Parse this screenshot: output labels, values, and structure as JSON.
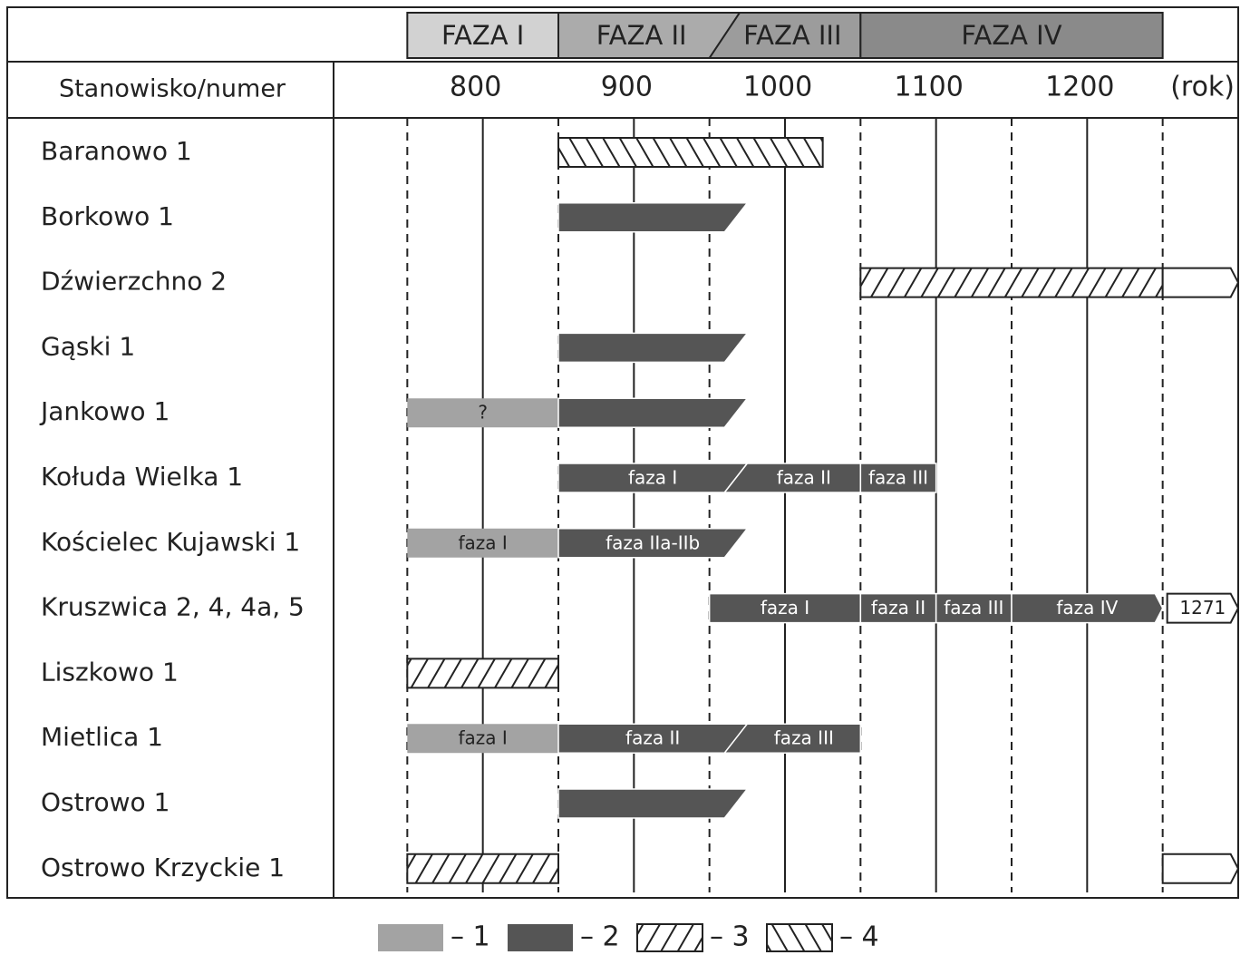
{
  "chart_data": {
    "type": "timeline",
    "row_header": "Stanowisko/numer",
    "axis_unit": "(rok)",
    "xlim": [
      700,
      1300
    ],
    "xticks": [
      800,
      900,
      1000,
      1100,
      1200
    ],
    "dashed_lines": [
      750,
      850,
      950,
      1050,
      1150,
      1250
    ],
    "phases": [
      {
        "label": "FAZA I",
        "start": 750,
        "end": 850,
        "color": "#d2d2d2"
      },
      {
        "label": "FAZA II",
        "start": 850,
        "end": 960,
        "color": "#ababab"
      },
      {
        "label": "FAZA III",
        "start": 960,
        "end": 1050,
        "color": "#9c9c9c"
      },
      {
        "label": "FAZA IV",
        "start": 1050,
        "end": 1250,
        "color": "#8a8a8a"
      }
    ],
    "legend": [
      {
        "label": "– 1",
        "style": "light"
      },
      {
        "label": "– 2",
        "style": "dark"
      },
      {
        "label": "– 3",
        "style": "hatch-right"
      },
      {
        "label": "– 4",
        "style": "hatch-left"
      }
    ],
    "rows": [
      {
        "name": "Baranowo 1",
        "segments": [
          {
            "start": 850,
            "end": 1025,
            "style": "hatch-left"
          }
        ]
      },
      {
        "name": "Borkowo 1",
        "segments": [
          {
            "start": 850,
            "end": 975,
            "style": "dark",
            "end_shape": "slant"
          }
        ]
      },
      {
        "name": "Dźwierzchno 2",
        "segments": [
          {
            "start": 1050,
            "end": 1250,
            "style": "hatch-right"
          },
          {
            "start": 1250,
            "end": 1300,
            "style": "open",
            "end_shape": "arrow"
          }
        ]
      },
      {
        "name": "Gąski 1",
        "segments": [
          {
            "start": 850,
            "end": 975,
            "style": "dark",
            "end_shape": "slant"
          }
        ]
      },
      {
        "name": "Jankowo 1",
        "segments": [
          {
            "start": 750,
            "end": 850,
            "style": "light",
            "label": "?"
          },
          {
            "start": 850,
            "end": 975,
            "style": "dark",
            "end_shape": "slant"
          }
        ]
      },
      {
        "name": "Kołuda Wielka 1",
        "segments": [
          {
            "start": 850,
            "end": 975,
            "style": "dark",
            "end_shape": "slant",
            "label": "faza I"
          },
          {
            "start": 975,
            "end": 1050,
            "style": "dark",
            "start_shape": "slant",
            "label": "faza II"
          },
          {
            "start": 1050,
            "end": 1100,
            "style": "dark",
            "label": "faza III"
          }
        ]
      },
      {
        "name": "Kościelec Kujawski 1",
        "segments": [
          {
            "start": 750,
            "end": 850,
            "style": "light",
            "label": "faza I"
          },
          {
            "start": 850,
            "end": 975,
            "style": "dark",
            "end_shape": "slant",
            "label": "faza IIa-IIb"
          }
        ]
      },
      {
        "name": "Kruszwica 2, 4, 4a, 5",
        "segments": [
          {
            "start": 950,
            "end": 1050,
            "style": "dark",
            "label": "faza I"
          },
          {
            "start": 1050,
            "end": 1100,
            "style": "dark",
            "label": "faza II"
          },
          {
            "start": 1100,
            "end": 1150,
            "style": "dark",
            "label": "faza III"
          },
          {
            "start": 1150,
            "end": 1250,
            "style": "dark",
            "end_shape": "arrow",
            "label": "faza IV"
          },
          {
            "start": 1253,
            "end": 1300,
            "style": "open",
            "end_shape": "arrow",
            "label": "1271"
          }
        ]
      },
      {
        "name": "Liszkowo 1",
        "segments": [
          {
            "start": 750,
            "end": 850,
            "style": "hatch-right"
          }
        ]
      },
      {
        "name": "Mietlica 1",
        "segments": [
          {
            "start": 750,
            "end": 850,
            "style": "light",
            "label": "faza I"
          },
          {
            "start": 850,
            "end": 975,
            "style": "dark",
            "end_shape": "slant",
            "label": "faza II"
          },
          {
            "start": 975,
            "end": 1050,
            "style": "dark",
            "start_shape": "slant",
            "label": "faza III"
          }
        ]
      },
      {
        "name": "Ostrowo 1",
        "segments": [
          {
            "start": 850,
            "end": 975,
            "style": "dark",
            "end_shape": "slant"
          }
        ]
      },
      {
        "name": "Ostrowo Krzyckie 1",
        "segments": [
          {
            "start": 750,
            "end": 850,
            "style": "hatch-right"
          },
          {
            "start": 1250,
            "end": 1300,
            "style": "open",
            "end_shape": "arrow"
          }
        ]
      }
    ]
  }
}
